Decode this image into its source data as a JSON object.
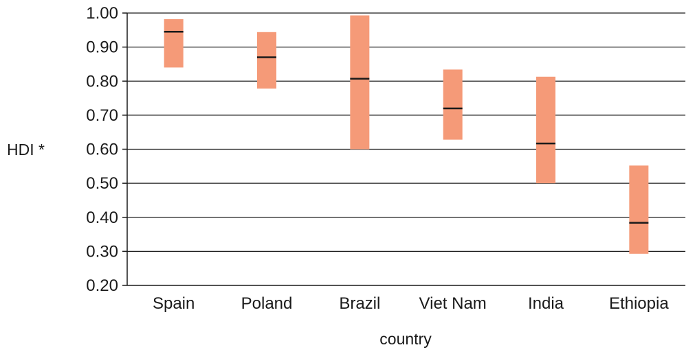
{
  "chart_data": {
    "type": "range-bar",
    "ylabel": "HDI *",
    "xlabel": "country",
    "ylim": [
      0.2,
      1.0
    ],
    "yticks": [
      "0.20",
      "0.30",
      "0.40",
      "0.50",
      "0.60",
      "0.70",
      "0.80",
      "0.90",
      "1.00"
    ],
    "grid": true,
    "categories": [
      "Spain",
      "Poland",
      "Brazil",
      "Viet Nam",
      "India",
      "Ethiopia"
    ],
    "series": [
      {
        "values": [
          {
            "low": 0.84,
            "high": 0.982,
            "mid": 0.945
          },
          {
            "low": 0.778,
            "high": 0.944,
            "mid": 0.87
          },
          {
            "low": 0.6,
            "high": 0.993,
            "mid": 0.807
          },
          {
            "low": 0.628,
            "high": 0.834,
            "mid": 0.72
          },
          {
            "low": 0.5,
            "high": 0.813,
            "mid": 0.617
          },
          {
            "low": 0.293,
            "high": 0.552,
            "mid": 0.384
          }
        ]
      }
    ],
    "colors": {
      "range": "#f59a78",
      "marker": "#1a1a1a",
      "grid": "#1a1a1a"
    }
  }
}
